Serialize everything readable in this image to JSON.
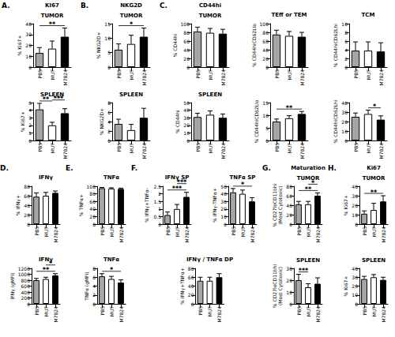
{
  "chart_data": [
    {
      "type": "bar",
      "panel": "A.",
      "title": "KI67",
      "group": "TUMOR",
      "ylabel": "% Ki67+",
      "categories": [
        "PBS",
        "MUT",
        "M7824"
      ],
      "values": [
        13,
        17,
        28
      ],
      "errors": [
        5,
        7,
        8
      ],
      "colors": [
        "#a6a6a6",
        "#ffffff",
        "#000000"
      ],
      "ylim": [
        0,
        40
      ],
      "yticks": [
        0,
        10,
        20,
        30,
        40
      ],
      "annotations": [
        {
          "between": [
            0,
            2
          ],
          "text": "**"
        }
      ]
    },
    {
      "type": "bar",
      "group": "SPLEEN",
      "ylabel": "% Ki67+",
      "categories": [
        "PBS",
        "MUT",
        "M7824"
      ],
      "values": [
        4.1,
        2.0,
        3.6
      ],
      "errors": [
        0.8,
        0.4,
        0.6
      ],
      "colors": [
        "#a6a6a6",
        "#ffffff",
        "#000000"
      ],
      "ylim": [
        0,
        5
      ],
      "yticks": [
        0,
        1,
        2,
        3,
        4,
        5
      ],
      "annotations": [
        {
          "between": [
            0,
            1
          ],
          "text": "**"
        },
        {
          "between": [
            1,
            2
          ],
          "text": "***"
        }
      ]
    },
    {
      "type": "bar",
      "panel": "B.",
      "title": "NKG2D",
      "group": "TUMOR",
      "ylabel": "% NKG2D+",
      "categories": [
        "PBS",
        "MUT",
        "M7824"
      ],
      "values": [
        6,
        8,
        10.5
      ],
      "errors": [
        2,
        3,
        3
      ],
      "colors": [
        "#a6a6a6",
        "#ffffff",
        "#000000"
      ],
      "ylim": [
        0,
        15
      ],
      "yticks": [
        0,
        5,
        10,
        15
      ],
      "annotations": [
        {
          "between": [
            0,
            2
          ],
          "text": "*"
        }
      ]
    },
    {
      "type": "bar",
      "group": "SPLEEN",
      "ylabel": "% NKG2D+",
      "categories": [
        "PBS",
        "MUT",
        "M7824"
      ],
      "values": [
        3.5,
        2.2,
        4.8
      ],
      "errors": [
        1,
        1.2,
        2
      ],
      "colors": [
        "#a6a6a6",
        "#ffffff",
        "#000000"
      ],
      "ylim": [
        0,
        8
      ],
      "yticks": [
        0,
        2,
        4,
        6,
        8
      ],
      "annotations": []
    },
    {
      "type": "bar",
      "panel": "C.",
      "title": "CD44hi",
      "group": "TUMOR",
      "ylabel": "% CD44hi",
      "categories": [
        "PBS",
        "MUT",
        "M7824"
      ],
      "values": [
        82,
        79,
        77
      ],
      "errors": [
        10,
        10,
        10
      ],
      "colors": [
        "#a6a6a6",
        "#ffffff",
        "#000000"
      ],
      "ylim": [
        0,
        100
      ],
      "yticks": [
        0,
        20,
        40,
        60,
        80,
        100
      ],
      "annotations": []
    },
    {
      "type": "bar",
      "title": "TEff or TEM",
      "ylabel": "% CD44hiCD62Llo",
      "categories": [
        "PBS",
        "MUT",
        "M7824"
      ],
      "values": [
        75,
        72,
        70
      ],
      "errors": [
        10,
        10,
        10
      ],
      "colors": [
        "#a6a6a6",
        "#ffffff",
        "#000000"
      ],
      "ylim": [
        0,
        100
      ],
      "yticks": [
        0,
        20,
        40,
        60,
        80,
        100
      ],
      "annotations": []
    },
    {
      "type": "bar",
      "title": "TCM",
      "ylabel": "% CD44hiCD62Lhi",
      "categories": [
        "PBS",
        "MUT",
        "M7824"
      ],
      "values": [
        3.8,
        3.8,
        3.6
      ],
      "errors": [
        2,
        2,
        2
      ],
      "colors": [
        "#a6a6a6",
        "#ffffff",
        "#000000"
      ],
      "ylim": [
        0,
        10
      ],
      "yticks": [
        0,
        2,
        4,
        6,
        8,
        10
      ],
      "annotations": []
    },
    {
      "type": "bar",
      "group": "SPLEEN",
      "ylabel": "% CD44hi",
      "categories": [
        "PBS",
        "MUT",
        "M7824"
      ],
      "values": [
        31,
        34,
        30
      ],
      "errors": [
        5,
        5,
        5
      ],
      "colors": [
        "#a6a6a6",
        "#ffffff",
        "#000000"
      ],
      "ylim": [
        0,
        50
      ],
      "yticks": [
        0,
        10,
        20,
        30,
        40,
        50
      ],
      "annotations": []
    },
    {
      "type": "bar",
      "ylabel": "% CD44hiCD62Llo",
      "categories": [
        "PBS",
        "MUT",
        "M7824"
      ],
      "values": [
        7.5,
        8.8,
        10.5
      ],
      "errors": [
        1,
        1,
        1
      ],
      "colors": [
        "#a6a6a6",
        "#ffffff",
        "#000000"
      ],
      "ylim": [
        0,
        15
      ],
      "yticks": [
        0,
        5,
        10,
        15
      ],
      "annotations": [
        {
          "between": [
            0,
            2
          ],
          "text": "**"
        }
      ]
    },
    {
      "type": "bar",
      "ylabel": "% CD44hiCD62Lhi",
      "categories": [
        "PBS",
        "MUT",
        "M7824"
      ],
      "values": [
        25,
        28,
        22
      ],
      "errors": [
        4,
        4,
        4
      ],
      "colors": [
        "#a6a6a6",
        "#ffffff",
        "#000000"
      ],
      "ylim": [
        0,
        40
      ],
      "yticks": [
        0,
        10,
        20,
        30,
        40
      ],
      "annotations": [
        {
          "between": [
            1,
            2
          ],
          "text": "*"
        }
      ]
    },
    {
      "type": "bar",
      "panel": "D.",
      "title": "IFNγ",
      "ylabel": "% IFNγ+",
      "categories": [
        "PBS",
        "MUT",
        "M7824"
      ],
      "values": [
        58,
        60,
        66
      ],
      "errors": [
        8,
        7,
        4
      ],
      "colors": [
        "#a6a6a6",
        "#ffffff",
        "#000000"
      ],
      "ylim": [
        0,
        80
      ],
      "yticks": [
        0,
        20,
        40,
        60,
        80
      ],
      "annotations": []
    },
    {
      "type": "bar",
      "title": "IFNγ",
      "ylabel": "IFNγ (gMFI)",
      "categories": [
        "PBS",
        "MUT",
        "M7824"
      ],
      "values": [
        800,
        840,
        960
      ],
      "errors": [
        60,
        60,
        60
      ],
      "colors": [
        "#a6a6a6",
        "#ffffff",
        "#000000"
      ],
      "ylim": [
        0,
        1200
      ],
      "yticks": [
        0,
        200,
        400,
        600,
        800,
        1000,
        1200
      ],
      "annotations": [
        {
          "between": [
            0,
            2
          ],
          "text": "**"
        },
        {
          "between": [
            1,
            2
          ],
          "text": "*"
        }
      ]
    },
    {
      "type": "bar",
      "panel": "E.",
      "title": "TNFα",
      "ylabel": "% TNFα+",
      "categories": [
        "PBS",
        "MUT",
        "M7824"
      ],
      "values": [
        95,
        94,
        93
      ],
      "errors": [
        2,
        2,
        2
      ],
      "colors": [
        "#a6a6a6",
        "#ffffff",
        "#000000"
      ],
      "ylim": [
        0,
        100
      ],
      "yticks": [
        0,
        20,
        40,
        60,
        80,
        100
      ],
      "annotations": []
    },
    {
      "type": "bar",
      "title": "TNFα",
      "ylabel": "TNFα (gMFI)",
      "categories": [
        "PBS",
        "MUT",
        "M7824"
      ],
      "values": [
        6.2,
        5.6,
        4.8
      ],
      "errors": [
        0.6,
        0.6,
        0.6
      ],
      "colors": [
        "#a6a6a6",
        "#ffffff",
        "#000000"
      ],
      "ylim": [
        0,
        8
      ],
      "yticks": [
        0,
        2,
        4,
        6,
        8
      ],
      "annotations": [
        {
          "between": [
            0,
            2
          ],
          "text": "*"
        }
      ]
    },
    {
      "type": "bar",
      "panel": "F.",
      "title": "IFNγ SP",
      "ylabel": "% IFNγ+TNFα-",
      "categories": [
        "PBS",
        "MUT",
        "M7824"
      ],
      "values": [
        0.6,
        1.0,
        1.8
      ],
      "errors": [
        0.2,
        0.3,
        0.3
      ],
      "colors": [
        "#a6a6a6",
        "#ffffff",
        "#000000"
      ],
      "ylim": [
        0,
        2.5
      ],
      "yticks": [
        0,
        0.5,
        1,
        1.5,
        2,
        2.5
      ],
      "annotations": [
        {
          "between": [
            0,
            2
          ],
          "text": "***"
        },
        {
          "between": [
            1,
            2
          ],
          "text": "***"
        }
      ]
    },
    {
      "type": "bar",
      "title": "TNFα SP",
      "ylabel": "% IFNγ-TNFα+",
      "categories": [
        "PBS",
        "MUT",
        "M7824"
      ],
      "values": [
        42,
        40,
        30
      ],
      "errors": [
        5,
        5,
        5
      ],
      "colors": [
        "#a6a6a6",
        "#ffffff",
        "#000000"
      ],
      "ylim": [
        0,
        50
      ],
      "yticks": [
        0,
        10,
        20,
        30,
        40,
        50
      ],
      "annotations": [
        {
          "between": [
            0,
            2
          ],
          "text": "*"
        }
      ]
    },
    {
      "type": "bar",
      "title": "IFNγ / TNFα DP",
      "ylabel": "% IFNγ+TNFα+",
      "categories": [
        "PBS",
        "MUT",
        "M7824"
      ],
      "values": [
        52,
        52,
        60
      ],
      "errors": [
        8,
        8,
        8
      ],
      "colors": [
        "#a6a6a6",
        "#ffffff",
        "#000000"
      ],
      "ylim": [
        0,
        80
      ],
      "yticks": [
        0,
        20,
        40,
        60,
        80
      ],
      "annotations": []
    },
    {
      "type": "bar",
      "panel": "G.",
      "title": "Maturation",
      "group": "TUMOR",
      "ylabel": "% CD27loCD11bhi\n(Most Cytotoxic)",
      "categories": [
        "PBS",
        "MUT",
        "M7824"
      ],
      "values": [
        42,
        42,
        60
      ],
      "errors": [
        6,
        6,
        6
      ],
      "colors": [
        "#a6a6a6",
        "#ffffff",
        "#000000"
      ],
      "ylim": [
        0,
        80
      ],
      "yticks": [
        0,
        20,
        40,
        60,
        80
      ],
      "annotations": [
        {
          "between": [
            0,
            2
          ],
          "text": "**"
        },
        {
          "between": [
            1,
            2
          ],
          "text": "*"
        }
      ]
    },
    {
      "type": "bar",
      "group": "SPLEEN",
      "ylabel": "% CD27loCD11bhi\n(Most Cytotoxic)",
      "categories": [
        "PBS",
        "MUT",
        "M7824"
      ],
      "values": [
        20,
        14,
        17
      ],
      "errors": [
        5,
        3,
        5
      ],
      "colors": [
        "#a6a6a6",
        "#ffffff",
        "#000000"
      ],
      "ylim": [
        0,
        30
      ],
      "yticks": [
        0,
        10,
        20,
        30
      ],
      "annotations": [
        {
          "between": [
            0,
            1
          ],
          "text": "***"
        }
      ]
    },
    {
      "type": "bar",
      "panel": "H.",
      "title": "Ki67",
      "group": "TUMOR",
      "ylabel": "% Ki67+",
      "categories": [
        "PBS",
        "MUT",
        "M7824"
      ],
      "values": [
        11,
        15,
        24
      ],
      "errors": [
        3,
        7,
        6
      ],
      "colors": [
        "#a6a6a6",
        "#ffffff",
        "#000000"
      ],
      "ylim": [
        0,
        40
      ],
      "yticks": [
        0,
        10,
        20,
        30,
        40
      ],
      "annotations": [
        {
          "between": [
            0,
            2
          ],
          "text": "**"
        }
      ]
    },
    {
      "type": "bar",
      "group": "SPLEEN",
      "ylabel": "% Ki67+",
      "categories": [
        "PBS",
        "MUT",
        "M7824"
      ],
      "values": [
        28,
        30,
        27
      ],
      "errors": [
        3,
        3,
        3
      ],
      "colors": [
        "#a6a6a6",
        "#ffffff",
        "#000000"
      ],
      "ylim": [
        0,
        40
      ],
      "yticks": [
        0,
        10,
        20,
        30,
        40
      ],
      "annotations": []
    }
  ]
}
